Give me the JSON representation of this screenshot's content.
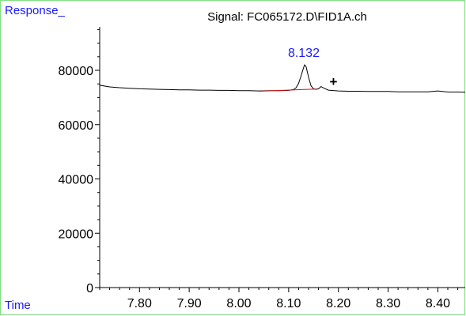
{
  "header": {
    "y_axis_title": "Response_",
    "signal_title": "Signal: FC065172.D\\FID1A.ch",
    "x_axis_title": "Time"
  },
  "colors": {
    "axis_title": "#1a1aff",
    "peak_label": "#1a1aff",
    "trace": "#000000",
    "baseline": "#d01010",
    "frame": "#7fe07f"
  },
  "chart_data": {
    "type": "line",
    "title": "Signal: FC065172.D\\FID1A.ch",
    "xlabel": "Time",
    "ylabel": "Response_",
    "xlim": [
      7.72,
      8.455
    ],
    "ylim": [
      0,
      96000
    ],
    "x_ticks": [
      7.8,
      7.9,
      8.0,
      8.1,
      8.2,
      8.3,
      8.4
    ],
    "x_tick_labels": [
      "7.80",
      "7.90",
      "8.00",
      "8.10",
      "8.20",
      "8.30",
      "8.40"
    ],
    "y_ticks": [
      0,
      20000,
      40000,
      60000,
      80000
    ],
    "y_tick_labels": [
      "0",
      "20000",
      "40000",
      "60000",
      "80000"
    ],
    "grid": false,
    "series": [
      {
        "x": [
          7.72,
          7.74,
          7.76,
          7.78,
          7.8,
          7.82,
          7.84,
          7.86,
          7.88,
          7.9,
          7.92,
          7.94,
          7.96,
          7.98,
          8.0,
          8.02,
          8.04,
          8.06,
          8.08,
          8.1,
          8.11,
          8.115,
          8.12,
          8.125,
          8.13,
          8.132,
          8.135,
          8.14,
          8.145,
          8.15,
          8.155,
          8.16,
          8.165,
          8.17,
          8.18,
          8.2,
          8.22,
          8.24,
          8.26,
          8.28,
          8.3,
          8.32,
          8.34,
          8.36,
          8.38,
          8.4,
          8.42,
          8.44,
          8.455
        ],
        "y": [
          74500,
          73900,
          73600,
          73400,
          73200,
          73100,
          73000,
          72900,
          72800,
          72800,
          72700,
          72700,
          72600,
          72600,
          72500,
          72500,
          72400,
          72500,
          72500,
          72600,
          72900,
          73600,
          75200,
          78000,
          81000,
          82000,
          81300,
          77500,
          74300,
          73200,
          73000,
          73200,
          74000,
          73500,
          72700,
          72400,
          72300,
          72300,
          72200,
          72200,
          72200,
          72100,
          72100,
          72100,
          72100,
          72400,
          72000,
          72000,
          71900
        ]
      }
    ],
    "baseline_segment": {
      "x": [
        8.04,
        8.155
      ],
      "y": [
        72300,
        73100
      ]
    },
    "annotations": [
      {
        "text": "8.132",
        "x": 8.132,
        "y": 82000,
        "kind": "peak-label"
      },
      {
        "text": "+",
        "x": 8.19,
        "y": 76000,
        "kind": "marker"
      }
    ]
  }
}
